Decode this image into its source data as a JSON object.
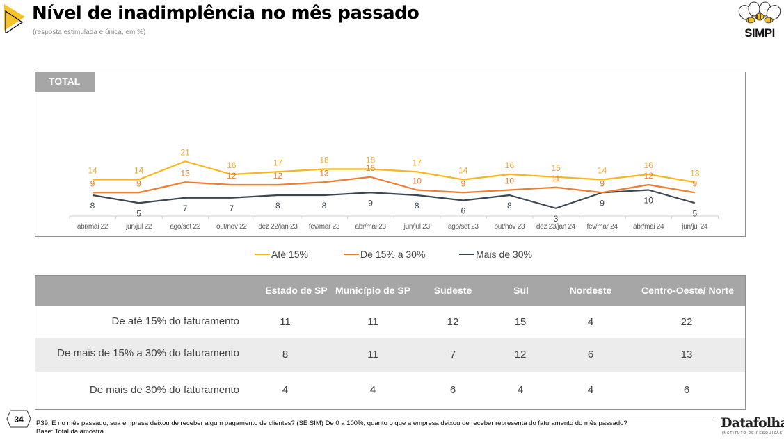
{
  "header": {
    "title": "Nível de inadimplência no mês passado",
    "subtitle": "(resposta estimulada e única, em %)",
    "logo_text": "SIMPI"
  },
  "chart_tag": "TOTAL",
  "chart_data": {
    "type": "line",
    "title": "Nível de inadimplência no mês passado",
    "subtitle": "(resposta estimulada e única, em %)",
    "xlabel": "",
    "ylabel": "",
    "ylim": [
      0,
      25
    ],
    "grid": false,
    "legend_position": "bottom",
    "categories": [
      "abr/mai 22",
      "jun/jul 22",
      "ago/set 22",
      "out/nov 22",
      "dez 22/jan 23",
      "fev/mar 23",
      "abr/mai 23",
      "jun/jul 23",
      "ago/set 23",
      "out/nov 23",
      "dez 23/jan 24",
      "fev/mar 24",
      "abr/mai 24",
      "jun/jul 24"
    ],
    "series": [
      {
        "name": "Até 15%",
        "color": "#f5b71c",
        "label_color": "#f0a82a",
        "label_position": "above",
        "values": [
          14,
          14,
          21,
          16,
          17,
          18,
          18,
          17,
          14,
          16,
          15,
          14,
          16,
          13
        ]
      },
      {
        "name": "De 15% a 30%",
        "color": "#ed7d31",
        "label_color": "#ed7d31",
        "label_position": "above",
        "values": [
          9,
          9,
          13,
          12,
          12,
          13,
          15,
          10,
          9,
          10,
          11,
          9,
          12,
          9
        ]
      },
      {
        "name": "Mais de 30%",
        "color": "#3c4650",
        "label_color": "#3c4650",
        "label_position": "below",
        "values": [
          8,
          5,
          7,
          7,
          8,
          8,
          9,
          8,
          6,
          8,
          3,
          9,
          10,
          5
        ]
      }
    ]
  },
  "legend": [
    {
      "label": "Até 15%",
      "color": "#f5b71c"
    },
    {
      "label": "De 15% a 30%",
      "color": "#ed7d31"
    },
    {
      "label": "Mais de 30%",
      "color": "#3c4650"
    }
  ],
  "table": {
    "columns": [
      "Estado de  SP",
      "Município de SP",
      "Sudeste",
      "Sul",
      "Nordeste",
      "Centro-Oeste/ Norte"
    ],
    "rows": [
      {
        "label": "De até 15% do faturamento",
        "values": [
          "11",
          "11",
          "12",
          "15",
          "4",
          "22"
        ]
      },
      {
        "label": "De mais de 15% a 30% do faturamento",
        "values": [
          "8",
          "11",
          "7",
          "12",
          "6",
          "13"
        ]
      },
      {
        "label": "De mais de 30% do faturamento",
        "values": [
          "4",
          "4",
          "6",
          "4",
          "4",
          "6"
        ]
      }
    ]
  },
  "footer": {
    "page_number": "34",
    "question": "P39. E no mês passado, sua empresa deixou de receber algum pagamento de clientes? (SE SIM) De 0 a 100%, quanto o que a empresa deixou de receber representa do faturamento do mês passado?",
    "base": "Base: Total da amostra",
    "brand": "Datafolha",
    "brand_sub": "INSTITUTO DE PESQUISAS"
  }
}
